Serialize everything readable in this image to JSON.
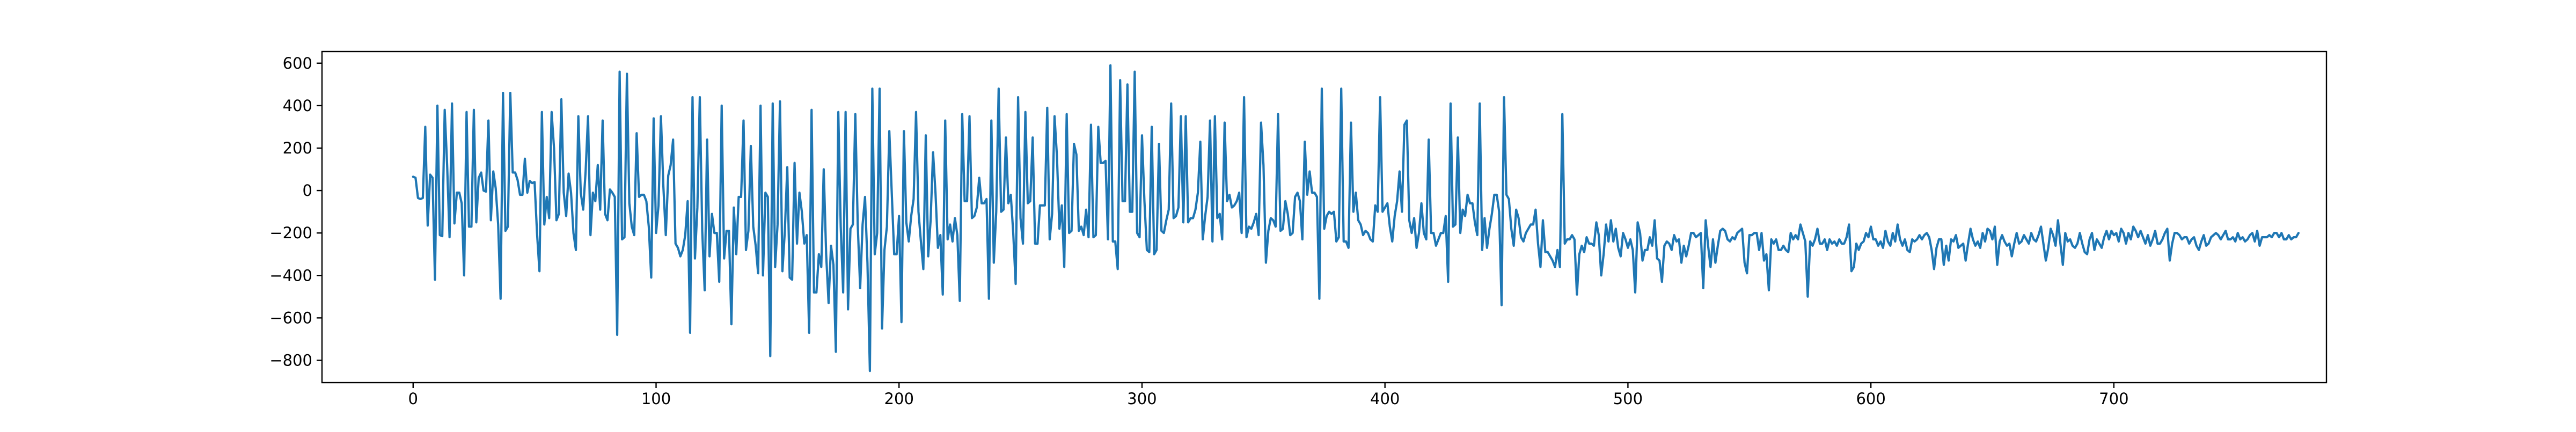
{
  "chart_data": {
    "type": "line",
    "title": "",
    "xlabel": "",
    "ylabel": "",
    "xlim": [
      -37.5,
      787.5
    ],
    "ylim": [
      -905,
      655
    ],
    "x_ticks": [
      0,
      100,
      200,
      300,
      400,
      500,
      600,
      700
    ],
    "y_ticks": [
      -800,
      -600,
      -400,
      -200,
      0,
      200,
      400,
      600
    ],
    "grid": false,
    "legend": "none",
    "colors": {
      "line": "#1f77b4",
      "axes": "#000000",
      "background": "#ffffff"
    },
    "x_start": 0,
    "x_step": 1,
    "series": [
      {
        "values": [
          65,
          60,
          -35,
          -40,
          -35,
          300,
          -165,
          75,
          60,
          -420,
          400,
          -210,
          -215,
          380,
          120,
          -220,
          410,
          -155,
          -10,
          -10,
          -60,
          -400,
          370,
          -170,
          -170,
          380,
          -150,
          60,
          85,
          0,
          -5,
          330,
          -140,
          90,
          10,
          -160,
          -510,
          460,
          -190,
          -170,
          460,
          85,
          85,
          50,
          -20,
          -20,
          150,
          -10,
          45,
          35,
          40,
          -200,
          -380,
          370,
          -160,
          -30,
          -130,
          370,
          200,
          -140,
          -110,
          430,
          -10,
          -120,
          80,
          -10,
          -200,
          -280,
          350,
          -10,
          -90,
          90,
          350,
          -210,
          -10,
          -50,
          120,
          -90,
          330,
          -110,
          -140,
          5,
          -10,
          -30,
          -680,
          560,
          -230,
          -220,
          550,
          -60,
          -170,
          -210,
          270,
          -30,
          -20,
          -20,
          -50,
          -170,
          -410,
          340,
          -200,
          -70,
          350,
          20,
          -210,
          70,
          120,
          240,
          -250,
          -270,
          -310,
          -280,
          -210,
          -50,
          -670,
          440,
          -320,
          -80,
          440,
          -190,
          -470,
          240,
          -310,
          -110,
          -200,
          -200,
          -430,
          400,
          -320,
          -190,
          -190,
          -630,
          -80,
          -300,
          -30,
          -30,
          330,
          -280,
          -190,
          210,
          -170,
          -260,
          -390,
          400,
          -400,
          -10,
          -30,
          -780,
          410,
          -360,
          -160,
          420,
          -380,
          -190,
          110,
          -410,
          -420,
          130,
          -250,
          -10,
          -100,
          -250,
          -210,
          -670,
          380,
          -480,
          -480,
          -300,
          -360,
          100,
          -300,
          -530,
          -260,
          -350,
          -760,
          370,
          -170,
          -480,
          370,
          -560,
          -180,
          -160,
          360,
          -160,
          -460,
          -160,
          -30,
          -340,
          -850,
          480,
          -300,
          -200,
          480,
          -650,
          -280,
          -170,
          280,
          -10,
          -300,
          -300,
          -120,
          -620,
          280,
          -150,
          -240,
          -120,
          -40,
          370,
          -100,
          -240,
          -370,
          260,
          -310,
          -140,
          180,
          -10,
          -270,
          -210,
          -490,
          330,
          -230,
          -160,
          -240,
          -130,
          -210,
          -520,
          360,
          -50,
          -50,
          350,
          -130,
          -120,
          -80,
          60,
          -60,
          -60,
          -40,
          -510,
          330,
          -340,
          -100,
          480,
          -100,
          -90,
          250,
          -60,
          -20,
          -200,
          -440,
          440,
          -130,
          -250,
          370,
          -60,
          -50,
          250,
          -250,
          -250,
          -70,
          -70,
          -70,
          390,
          -230,
          -110,
          350,
          160,
          -180,
          -70,
          -360,
          360,
          -200,
          -190,
          220,
          170,
          -190,
          -170,
          -210,
          -90,
          -220,
          310,
          -220,
          -210,
          300,
          130,
          130,
          140,
          -230,
          590,
          -240,
          -240,
          -370,
          520,
          -50,
          -50,
          500,
          -100,
          -100,
          560,
          -200,
          -220,
          260,
          -50,
          -280,
          -290,
          300,
          -300,
          -280,
          220,
          -190,
          -200,
          -140,
          -90,
          410,
          -130,
          -120,
          -80,
          350,
          -150,
          350,
          -150,
          -130,
          -130,
          -90,
          -10,
          230,
          -230,
          -120,
          -30,
          330,
          -240,
          350,
          -130,
          -110,
          -230,
          320,
          -50,
          -20,
          -80,
          -70,
          -50,
          -10,
          -200,
          440,
          -220,
          -170,
          -180,
          -150,
          -110,
          -210,
          320,
          120,
          -340,
          -190,
          -130,
          -140,
          -170,
          360,
          -190,
          -180,
          -50,
          -110,
          -210,
          -200,
          -30,
          -10,
          -50,
          -230,
          230,
          -20,
          90,
          -10,
          -10,
          -30,
          -510,
          480,
          -180,
          -120,
          -100,
          -110,
          -100,
          -240,
          -220,
          480,
          -240,
          -240,
          -270,
          320,
          -100,
          -10,
          -140,
          -160,
          -210,
          -190,
          -200,
          -230,
          -240,
          -70,
          -100,
          440,
          -100,
          -80,
          -60,
          -170,
          -240,
          -120,
          -50,
          90,
          -100,
          310,
          330,
          -140,
          -200,
          -130,
          -270,
          -200,
          -60,
          -200,
          -230,
          240,
          -200,
          -200,
          -260,
          -230,
          -200,
          -200,
          -120,
          -430,
          410,
          -170,
          -160,
          250,
          -200,
          -90,
          -120,
          -20,
          -60,
          -60,
          -150,
          -210,
          410,
          -280,
          -130,
          -270,
          -180,
          -110,
          -20,
          -20,
          -100,
          -540,
          440,
          -20,
          -40,
          -180,
          -260,
          -90,
          -130,
          -220,
          -240,
          -200,
          -180,
          -160,
          -160,
          -90,
          -250,
          -360,
          -140,
          -290,
          -290,
          -310,
          -330,
          -360,
          -280,
          -360,
          360,
          -250,
          -230,
          -230,
          -210,
          -230,
          -490,
          -300,
          -260,
          -290,
          -220,
          -250,
          -250,
          -260,
          -150,
          -210,
          -400,
          -300,
          -160,
          -240,
          -140,
          -240,
          -180,
          -270,
          -310,
          -200,
          -230,
          -270,
          -230,
          -280,
          -480,
          -150,
          -200,
          -330,
          -280,
          -280,
          -220,
          -260,
          -140,
          -320,
          -330,
          -430,
          -260,
          -240,
          -250,
          -280,
          -210,
          -240,
          -230,
          -340,
          -260,
          -310,
          -260,
          -200,
          -200,
          -220,
          -210,
          -200,
          -460,
          -140,
          -260,
          -360,
          -230,
          -340,
          -260,
          -190,
          -180,
          -190,
          -230,
          -240,
          -220,
          -230,
          -200,
          -190,
          -180,
          -340,
          -390,
          -210,
          -210,
          -200,
          -200,
          -280,
          -200,
          -330,
          -300,
          -470,
          -230,
          -250,
          -230,
          -280,
          -280,
          -260,
          -280,
          -290,
          -200,
          -230,
          -210,
          -230,
          -160,
          -200,
          -240,
          -500,
          -240,
          -260,
          -230,
          -180,
          -250,
          -250,
          -230,
          -280,
          -230,
          -250,
          -240,
          -260,
          -230,
          -250,
          -250,
          -220,
          -160,
          -380,
          -360,
          -250,
          -280,
          -250,
          -240,
          -200,
          -220,
          -170,
          -230,
          -230,
          -260,
          -240,
          -270,
          -190,
          -240,
          -260,
          -200,
          -240,
          -160,
          -230,
          -260,
          -230,
          -280,
          -290,
          -230,
          -240,
          -230,
          -210,
          -230,
          -210,
          -200,
          -220,
          -280,
          -370,
          -270,
          -230,
          -230,
          -350,
          -260,
          -330,
          -230,
          -240,
          -210,
          -270,
          -260,
          -250,
          -330,
          -250,
          -180,
          -230,
          -260,
          -240,
          -270,
          -200,
          -240,
          -180,
          -190,
          -230,
          -170,
          -350,
          -240,
          -210,
          -240,
          -260,
          -250,
          -310,
          -250,
          -200,
          -250,
          -240,
          -210,
          -230,
          -250,
          -200,
          -230,
          -240,
          -210,
          -170,
          -250,
          -330,
          -270,
          -180,
          -210,
          -260,
          -140,
          -250,
          -350,
          -200,
          -240,
          -230,
          -260,
          -270,
          -250,
          -200,
          -250,
          -290,
          -300,
          -230,
          -200,
          -280,
          -230,
          -250,
          -270,
          -220,
          -190,
          -230,
          -190,
          -210,
          -200,
          -240,
          -180,
          -200,
          -250,
          -200,
          -230,
          -170,
          -190,
          -220,
          -190,
          -220,
          -250,
          -210,
          -260,
          -230,
          -190,
          -250,
          -250,
          -230,
          -200,
          -180,
          -330,
          -250,
          -200,
          -200,
          -210,
          -230,
          -220,
          -220,
          -250,
          -230,
          -220,
          -260,
          -280,
          -240,
          -210,
          -260,
          -250,
          -220,
          -210,
          -200,
          -210,
          -230,
          -210,
          -190,
          -230,
          -230,
          -220,
          -240,
          -200,
          -230,
          -220,
          -240,
          -230,
          -210,
          -200,
          -240,
          -190,
          -260,
          -220,
          -220,
          -220,
          -210,
          -220,
          -200,
          -200,
          -220,
          -200,
          -230,
          -230,
          -210,
          -230,
          -220,
          -220,
          -200
        ]
      }
    ]
  }
}
